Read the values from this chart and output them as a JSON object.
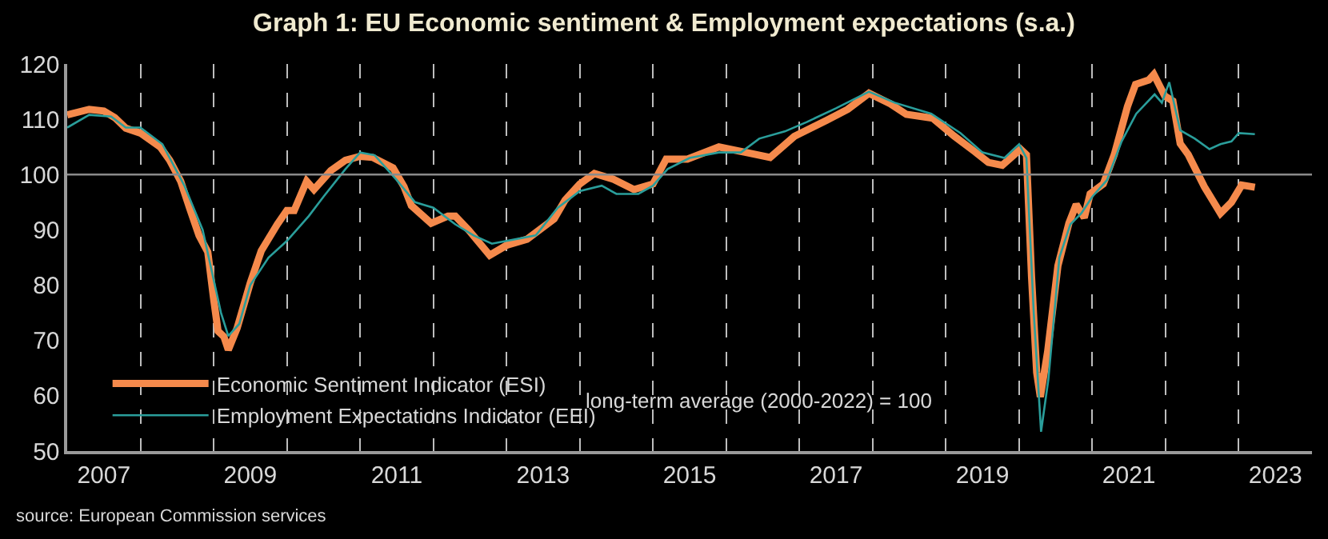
{
  "chart_data": {
    "type": "line",
    "title": "Graph 1: EU Economic sentiment & Employment expectations (s.a.)",
    "annotations": [
      "long-term average (2000-2022) = 100",
      "source: European Commission services"
    ],
    "xlim": [
      2007,
      2024
    ],
    "xticks": [
      {
        "value": 2007.5,
        "label": "2007"
      },
      {
        "value": 2008,
        "label": null
      },
      {
        "value": 2009,
        "label": null
      },
      {
        "value": 2009.5,
        "label": "2009"
      },
      {
        "value": 2010,
        "label": null
      },
      {
        "value": 2011,
        "label": null
      },
      {
        "value": 2011.5,
        "label": "2011"
      },
      {
        "value": 2012,
        "label": null
      },
      {
        "value": 2013,
        "label": null
      },
      {
        "value": 2013.5,
        "label": "2013"
      },
      {
        "value": 2014,
        "label": null
      },
      {
        "value": 2015,
        "label": null
      },
      {
        "value": 2015.5,
        "label": "2015"
      },
      {
        "value": 2016,
        "label": null
      },
      {
        "value": 2017,
        "label": null
      },
      {
        "value": 2017.5,
        "label": "2017"
      },
      {
        "value": 2018,
        "label": null
      },
      {
        "value": 2019,
        "label": null
      },
      {
        "value": 2019.5,
        "label": "2019"
      },
      {
        "value": 2020,
        "label": null
      },
      {
        "value": 2021,
        "label": null
      },
      {
        "value": 2021.5,
        "label": "2021"
      },
      {
        "value": 2022,
        "label": null
      },
      {
        "value": 2023,
        "label": null
      },
      {
        "value": 2023.5,
        "label": "2023"
      }
    ],
    "ylim": [
      50,
      120
    ],
    "yticks": [
      50,
      60,
      70,
      80,
      90,
      100,
      110,
      120
    ],
    "grid": "x",
    "legend": "bottom left",
    "marker": "none",
    "line_style": "solid",
    "ref_lines": [
      {
        "axis": "y",
        "value": 100,
        "color": "#8a8a8a"
      }
    ],
    "series": [
      {
        "name": "Economic Sentiment Indicator (ESI)",
        "color": "#f58a4c",
        "x": [
          2007.0,
          2007.3,
          2007.5,
          2007.65,
          2007.8,
          2008.0,
          2008.27,
          2008.4,
          2008.55,
          2008.67,
          2008.8,
          2008.92,
          2009.0,
          2009.06,
          2009.14,
          2009.2,
          2009.32,
          2009.5,
          2009.65,
          2009.87,
          2010.0,
          2010.1,
          2010.27,
          2010.37,
          2010.6,
          2010.8,
          2011.0,
          2011.17,
          2011.45,
          2011.6,
          2011.7,
          2011.97,
          2012.2,
          2012.3,
          2012.48,
          2012.77,
          2013.0,
          2013.28,
          2013.65,
          2013.8,
          2014.0,
          2014.2,
          2014.45,
          2014.74,
          2015.0,
          2015.18,
          2015.47,
          2015.9,
          2016.27,
          2016.6,
          2016.93,
          2017.37,
          2017.66,
          2017.95,
          2018.24,
          2018.46,
          2018.82,
          2019.11,
          2019.4,
          2019.58,
          2019.77,
          2020.02,
          2020.1,
          2020.17,
          2020.24,
          2020.29,
          2020.39,
          2020.53,
          2020.68,
          2020.78,
          2020.89,
          2020.97,
          2021.15,
          2021.3,
          2021.48,
          2021.59,
          2021.77,
          2021.84,
          2021.99,
          2022.1,
          2022.2,
          2022.31,
          2022.53,
          2022.75,
          2022.9,
          2023.04,
          2023.22
        ],
        "values": [
          110.8,
          111.8,
          111.5,
          110.3,
          108.4,
          107.5,
          105,
          102.6,
          98.8,
          94,
          89,
          86,
          77.5,
          71.7,
          70.7,
          68.3,
          72.2,
          80.4,
          86.2,
          91,
          93.5,
          93.5,
          98.8,
          97.3,
          100.7,
          102.6,
          103.3,
          103.1,
          101.2,
          97.8,
          94.4,
          91.2,
          92.5,
          92.5,
          90,
          85.4,
          87.2,
          88.3,
          92,
          95.4,
          98.3,
          100.2,
          99.2,
          97.3,
          98.3,
          102.8,
          102.8,
          105,
          104,
          103.1,
          106.9,
          109.8,
          111.8,
          114.7,
          112.8,
          110.9,
          110.2,
          107,
          104.1,
          102.2,
          101.7,
          104.6,
          103.6,
          81.5,
          64.2,
          59.8,
          68,
          83.5,
          91.2,
          94.6,
          92.2,
          96.5,
          98.3,
          103.6,
          112.3,
          116.3,
          117.1,
          118.1,
          114.2,
          113.3,
          105.6,
          103.6,
          97.8,
          93,
          95,
          98.1,
          97.7
        ]
      },
      {
        "name": "Employment Expectations Indicator (EEI)",
        "color": "#2a9e9b",
        "x": [
          2007.0,
          2007.3,
          2007.6,
          2007.8,
          2008.0,
          2008.3,
          2008.6,
          2008.85,
          2009.0,
          2009.1,
          2009.2,
          2009.35,
          2009.5,
          2009.75,
          2010.0,
          2010.3,
          2010.5,
          2010.8,
          2011.0,
          2011.2,
          2011.5,
          2011.75,
          2012.0,
          2012.3,
          2012.55,
          2012.8,
          2013.0,
          2013.4,
          2013.7,
          2014.0,
          2014.3,
          2014.5,
          2014.8,
          2015.0,
          2015.2,
          2015.5,
          2015.9,
          2016.2,
          2016.45,
          2016.8,
          2017.1,
          2017.5,
          2017.95,
          2018.3,
          2018.8,
          2019.2,
          2019.5,
          2019.8,
          2020.0,
          2020.1,
          2020.2,
          2020.3,
          2020.4,
          2020.55,
          2020.7,
          2020.85,
          2021.0,
          2021.2,
          2021.4,
          2021.6,
          2021.85,
          2021.95,
          2022.05,
          2022.2,
          2022.4,
          2022.6,
          2022.75,
          2022.9,
          2023.0,
          2023.22
        ],
        "values": [
          108.5,
          110.8,
          110.5,
          108.5,
          108.5,
          105.5,
          98,
          90,
          81,
          75,
          70.8,
          73,
          80,
          85,
          88,
          92.5,
          96,
          101,
          104,
          103.5,
          99,
          95,
          94,
          91,
          89,
          87.5,
          88,
          89,
          94,
          97,
          98,
          96.5,
          96.5,
          98,
          101,
          103,
          104,
          104,
          106.5,
          107.8,
          109.5,
          112,
          115,
          113,
          111,
          107.5,
          104,
          103,
          105.5,
          103,
          75,
          53.5,
          63,
          85,
          91,
          93,
          96,
          99,
          106,
          111,
          114.5,
          113,
          116.7,
          108,
          106.5,
          104.6,
          105.5,
          106,
          107.5,
          107.3
        ]
      }
    ]
  }
}
